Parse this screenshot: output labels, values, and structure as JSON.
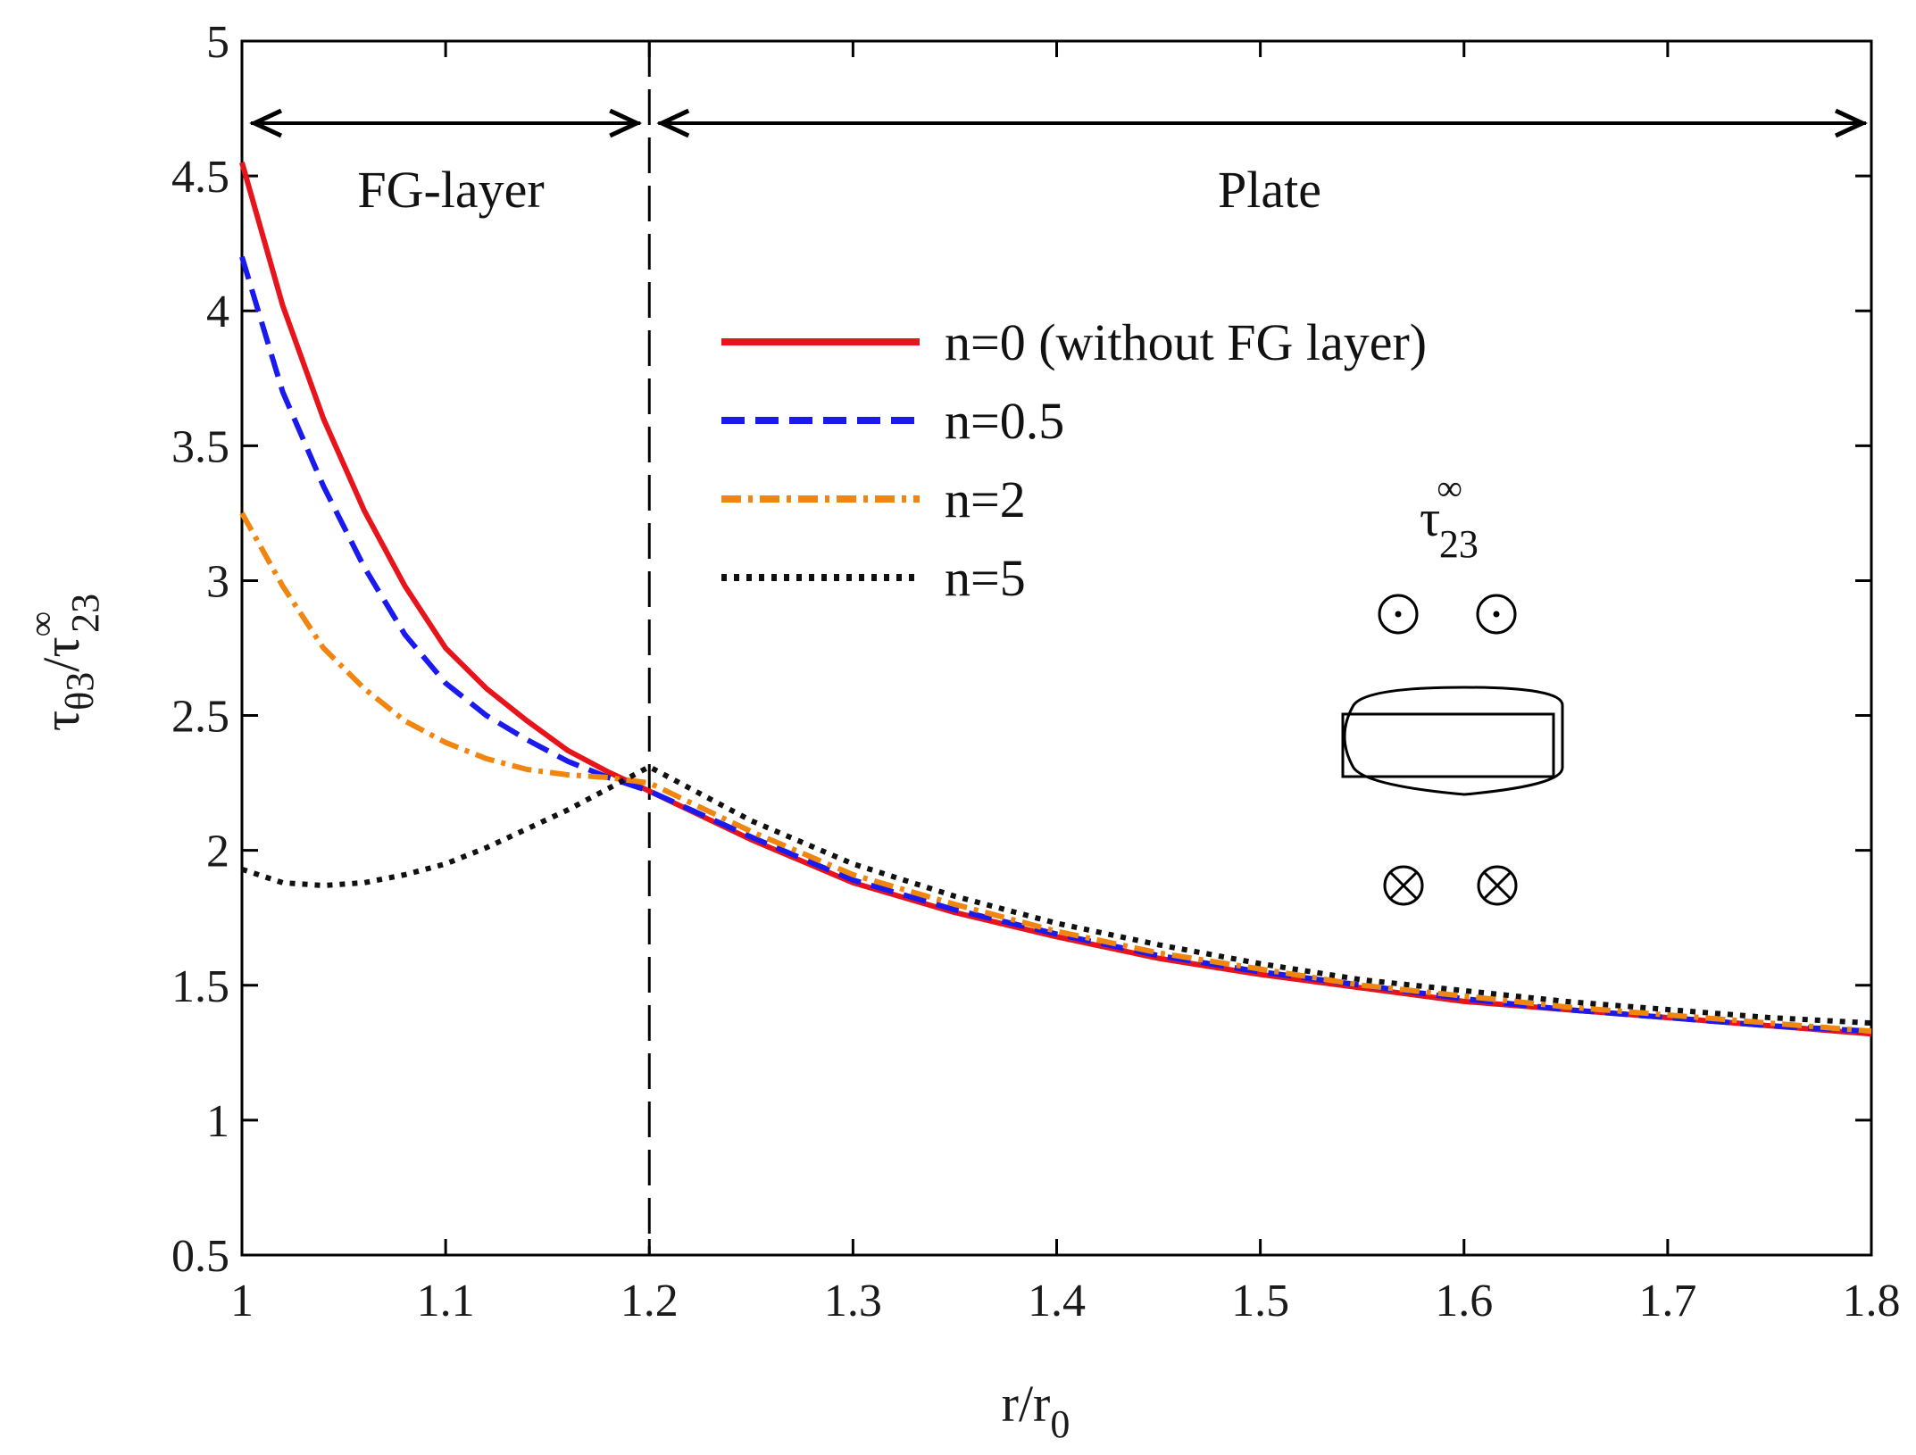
{
  "chart_data": {
    "type": "line",
    "title": "",
    "xlabel": "r/r",
    "xlabel_sub": "0",
    "ylabel": "τ",
    "ylabel_sub": "θ3",
    "ylabel_rest": "/τ",
    "ylabel_sup": "∞",
    "ylabel_sub2": "23",
    "xlim": [
      1.0,
      1.8
    ],
    "ylim": [
      0.5,
      5.0
    ],
    "xticks": [
      "1",
      "1.1",
      "1.2",
      "1.3",
      "1.4",
      "1.5",
      "1.6",
      "1.7",
      "1.8"
    ],
    "yticks": [
      "0.5",
      "1",
      "1.5",
      "2",
      "2.5",
      "3",
      "3.5",
      "4",
      "4.5",
      "5"
    ],
    "xtick_values": [
      1.0,
      1.1,
      1.2,
      1.3,
      1.4,
      1.5,
      1.6,
      1.7,
      1.8
    ],
    "ytick_values": [
      0.5,
      1.0,
      1.5,
      2.0,
      2.5,
      3.0,
      3.5,
      4.0,
      4.5,
      5.0
    ],
    "x": [
      1.0,
      1.02,
      1.04,
      1.06,
      1.08,
      1.1,
      1.12,
      1.14,
      1.16,
      1.18,
      1.2,
      1.25,
      1.3,
      1.35,
      1.4,
      1.45,
      1.5,
      1.55,
      1.6,
      1.65,
      1.7,
      1.75,
      1.8
    ],
    "series": [
      {
        "name": "n=0 (without FG layer)",
        "color": "#e8141c",
        "dash": "solid",
        "values": [
          4.55,
          4.02,
          3.6,
          3.26,
          2.98,
          2.75,
          2.6,
          2.48,
          2.37,
          2.29,
          2.22,
          2.04,
          1.88,
          1.77,
          1.68,
          1.6,
          1.54,
          1.49,
          1.44,
          1.41,
          1.38,
          1.35,
          1.32
        ]
      },
      {
        "name": "n=0.5",
        "color": "#1a1aef",
        "dash": "dashed",
        "values": [
          4.2,
          3.7,
          3.35,
          3.05,
          2.8,
          2.62,
          2.5,
          2.41,
          2.33,
          2.27,
          2.22,
          2.05,
          1.89,
          1.78,
          1.69,
          1.61,
          1.55,
          1.5,
          1.45,
          1.41,
          1.38,
          1.35,
          1.33
        ]
      },
      {
        "name": "n=2",
        "color": "#f0850f",
        "dash": "dashdot",
        "values": [
          3.25,
          2.98,
          2.75,
          2.6,
          2.48,
          2.4,
          2.34,
          2.3,
          2.28,
          2.27,
          2.25,
          2.07,
          1.91,
          1.8,
          1.7,
          1.62,
          1.56,
          1.5,
          1.46,
          1.42,
          1.39,
          1.36,
          1.33
        ]
      },
      {
        "name": "n=5",
        "color": "#111111",
        "dash": "dotted",
        "values": [
          1.93,
          1.88,
          1.87,
          1.88,
          1.91,
          1.95,
          2.01,
          2.08,
          2.15,
          2.23,
          2.31,
          2.11,
          1.95,
          1.83,
          1.73,
          1.65,
          1.58,
          1.52,
          1.48,
          1.44,
          1.41,
          1.38,
          1.36
        ]
      }
    ],
    "legend_position": "upper-center",
    "annotations": {
      "region_left": "FG-layer",
      "region_right": "Plate",
      "boundary_x": 1.2,
      "inset_symbol": "τ",
      "inset_sup": "∞",
      "inset_sub": "23"
    }
  }
}
